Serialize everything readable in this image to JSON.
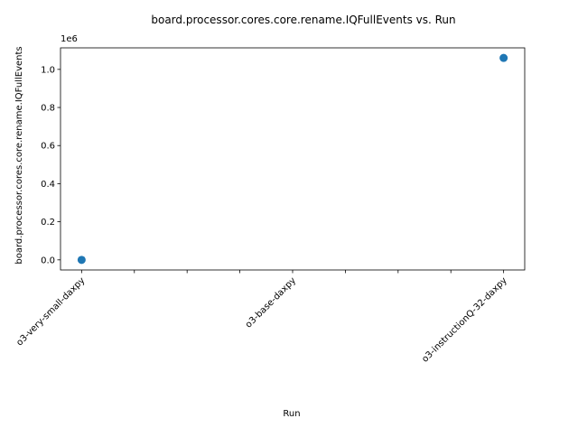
{
  "chart_data": {
    "type": "scatter",
    "title": "board.processor.cores.core.rename.IQFullEvents vs. Run",
    "xlabel": "Run",
    "ylabel": "board.processor.cores.core.rename.IQFullEvents",
    "y_offset_label": "1e6",
    "x_tick_labels": [
      "o3-very-small-daxpy",
      "",
      "",
      "",
      "o3-base-daxpy",
      "",
      "",
      "",
      "o3-instructionQ-32-daxpy"
    ],
    "x_tick_positions": [
      0,
      0.25,
      0.5,
      0.75,
      1.0,
      1.25,
      1.5,
      1.75,
      2.0
    ],
    "xlim": [
      -0.1,
      2.1
    ],
    "y_ticks": [
      0.0,
      0.2,
      0.4,
      0.6,
      0.8,
      1.0
    ],
    "y_tick_labels": [
      "0.0",
      "0.2",
      "0.4",
      "0.6",
      "0.8",
      "1.0"
    ],
    "y_scale": 1000000,
    "ylim": [
      -53000,
      1113000
    ],
    "points": [
      {
        "x": 0,
        "x_label": "o3-very-small-daxpy",
        "y": 0
      },
      {
        "x": 2,
        "x_label": "o3-instructionQ-32-daxpy",
        "y": 1060000
      }
    ],
    "marker_color": "#1f77b4",
    "grid": false,
    "legend": false
  }
}
